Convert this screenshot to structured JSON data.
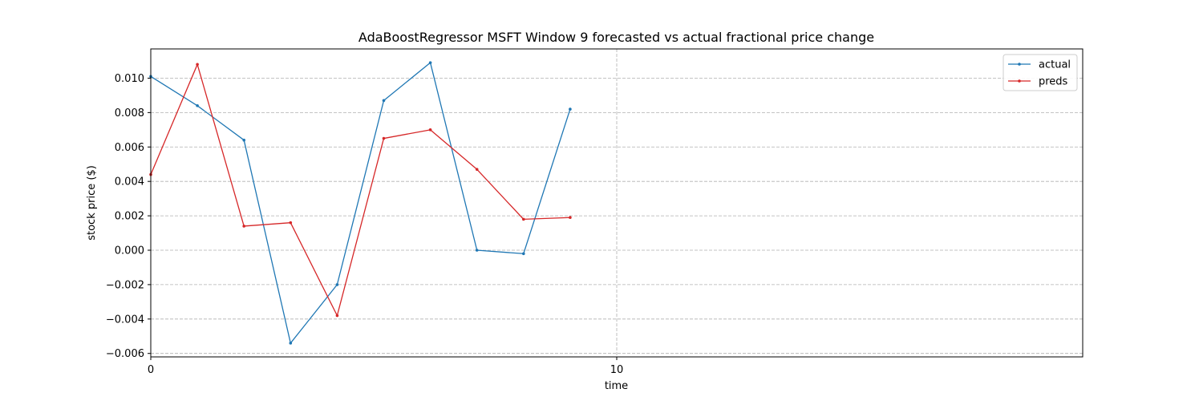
{
  "chart_data": {
    "type": "line",
    "title": "AdaBoostRegressor MSFT Window 9 forecasted vs actual fractional price change",
    "xlabel": "time",
    "ylabel": "stock price ($)",
    "xlim": [
      0,
      20
    ],
    "ylim": [
      -0.0062,
      0.0117
    ],
    "xticks": [
      0,
      10
    ],
    "xtick_labels": [
      "0",
      "10"
    ],
    "yticks": [
      -0.006,
      -0.004,
      -0.002,
      0.0,
      0.002,
      0.004,
      0.006,
      0.008,
      0.01
    ],
    "ytick_labels": [
      "−0.006",
      "−0.004",
      "−0.002",
      "0.000",
      "0.002",
      "0.004",
      "0.006",
      "0.008",
      "0.010"
    ],
    "grid": true,
    "legend_position": "top-right",
    "x": [
      0,
      1,
      2,
      3,
      4,
      5,
      6,
      7,
      8,
      9
    ],
    "series": [
      {
        "name": "actual",
        "color": "#1f77b4",
        "values": [
          0.0101,
          0.0084,
          0.0064,
          -0.0054,
          -0.002,
          0.0087,
          0.0109,
          0.0,
          -0.0002,
          0.0082
        ]
      },
      {
        "name": "preds",
        "color": "#d62728",
        "values": [
          0.0044,
          0.0108,
          0.0014,
          0.0016,
          -0.0038,
          0.0065,
          0.007,
          0.0047,
          0.0018,
          0.0019
        ]
      }
    ]
  }
}
